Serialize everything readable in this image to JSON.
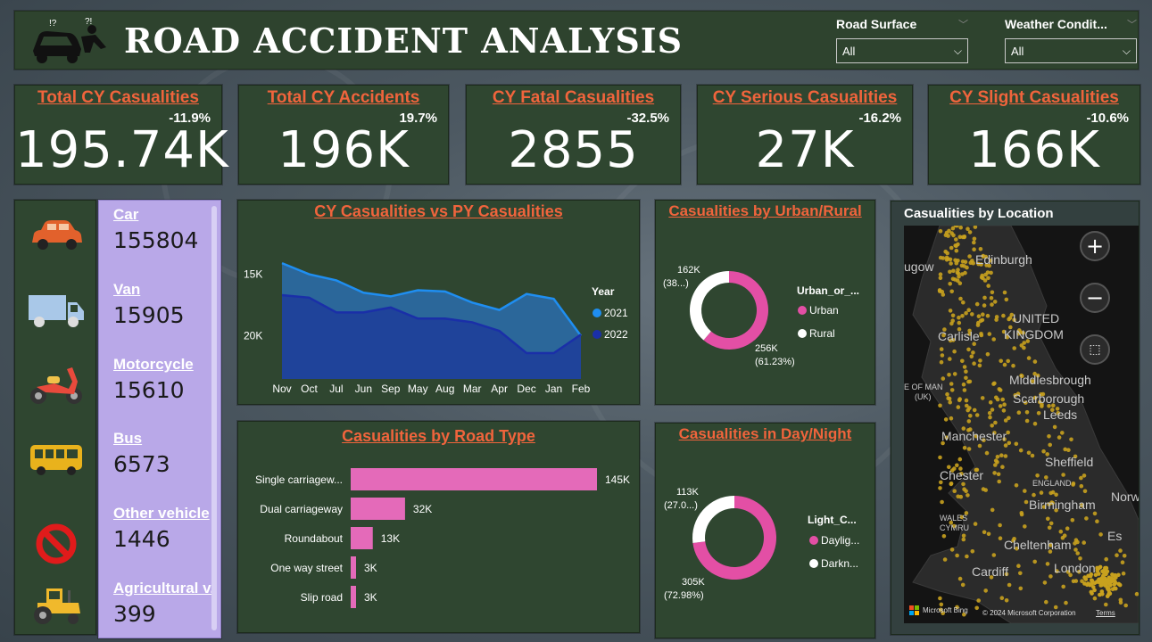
{
  "header": {
    "title": "ROAD ACCIDENT ANALYSIS",
    "slicers": [
      {
        "label": "Road Surface",
        "value": "All"
      },
      {
        "label": "Weather Condit...",
        "value": "All"
      }
    ]
  },
  "kpis": [
    {
      "title": "Total CY Casualities",
      "delta": "-11.9%",
      "value": "195.74K"
    },
    {
      "title": "Total CY Accidents",
      "delta": "19.7%",
      "value": "196K"
    },
    {
      "title": "CY Fatal Casualities",
      "delta": "-32.5%",
      "value": "2855"
    },
    {
      "title": "CY Serious Casualities",
      "delta": "-16.2%",
      "value": "27K"
    },
    {
      "title": "CY Slight Casualities",
      "delta": "-10.6%",
      "value": "166K"
    }
  ],
  "vehicles": [
    {
      "name": "Car",
      "value": "155804",
      "icon": "car-icon",
      "color": "#e2612c"
    },
    {
      "name": "Van",
      "value": "15905",
      "icon": "van-icon",
      "color": "#a9c8e8"
    },
    {
      "name": "Motorcycle",
      "value": "15610",
      "icon": "motorcycle-icon",
      "color": "#e84a3c"
    },
    {
      "name": "Bus",
      "value": "6573",
      "icon": "bus-icon",
      "color": "#e9b21c"
    },
    {
      "name": "Other vehicle",
      "value": "1446",
      "icon": "prohibited-icon",
      "color": "#e01b1b"
    },
    {
      "name": "Agricultural v...",
      "value": "399",
      "icon": "tractor-icon",
      "color": "#f0b92c"
    }
  ],
  "charts": {
    "cy_py": {
      "title": "CY Casualities vs PY Casualities",
      "legend_title": "Year",
      "y_ticks": [
        "20K",
        "15K"
      ]
    },
    "road_type": {
      "title": "Casualities by Road Type"
    },
    "urban_rural": {
      "title": "Casualities by Urban/Rural",
      "legend_title": "Urban_or_...",
      "labels": [
        {
          "line1": "162K",
          "line2": "(38...)"
        },
        {
          "line1": "256K",
          "line2": "(61.23%)"
        }
      ]
    },
    "day_night": {
      "title": "Casualities in Day/Night",
      "legend_title": "Light_C...",
      "labels": [
        {
          "line1": "113K",
          "line2": "(27.0...)"
        },
        {
          "line1": "305K",
          "line2": "(72.98%)"
        }
      ]
    }
  },
  "map": {
    "title": "Casualities by Location",
    "zoom_in": "+",
    "zoom_out": "−",
    "attribution_left": "Microsoft Bing",
    "attribution_right": "© 2024 Microsoft Corporation",
    "terms": "Terms",
    "place_labels": [
      "ugow",
      "Edinburgh",
      "UNITED",
      "KINGDOM",
      "Carlisle",
      "E OF MAN",
      "(UK)",
      "Middlesbrough",
      "Scarborough",
      "Leeds",
      "Manchester",
      "Sheffield",
      "Chester",
      "ENGLAND",
      "Birmingham",
      "Norw",
      "WALES",
      "CYMRU",
      "Cheltenham",
      "Es",
      "London",
      "Cardiff"
    ]
  },
  "chart_data": [
    {
      "type": "area",
      "title": "CY Casualities vs PY Casualities",
      "categories": [
        "Nov",
        "Oct",
        "Jul",
        "Jun",
        "Sep",
        "May",
        "Aug",
        "Mar",
        "Apr",
        "Dec",
        "Jan",
        "Feb"
      ],
      "ylim": [
        11500,
        22500
      ],
      "y_ticks": [
        15000,
        20000
      ],
      "legend_title": "Year",
      "legend_placement": "right",
      "series": [
        {
          "name": "2021",
          "color": "#1f8ef1",
          "values": [
            20900,
            20000,
            19500,
            18500,
            18200,
            18700,
            18600,
            17700,
            17100,
            18400,
            18000,
            15000
          ]
        },
        {
          "name": "2022",
          "color": "#1a2fa8",
          "values": [
            18300,
            18100,
            16900,
            16900,
            17300,
            16400,
            16400,
            16100,
            15400,
            13600,
            13600,
            15100
          ]
        }
      ]
    },
    {
      "type": "bar",
      "orientation": "horizontal",
      "title": "Casualities by Road Type",
      "categories": [
        "Single carriagew...",
        "Dual carriageway",
        "Roundabout",
        "One way street",
        "Slip road"
      ],
      "values": [
        145,
        32,
        13,
        3,
        3
      ],
      "value_labels": [
        "145K",
        "32K",
        "13K",
        "3K",
        "3K"
      ],
      "unit": "K",
      "color": "#e46ab9"
    },
    {
      "type": "pie",
      "title": "Casualities by Urban/Rural",
      "legend_title": "Urban_or_...",
      "series": [
        {
          "name": "Urban",
          "value": 256,
          "label": "256K",
          "percent": "61.23%",
          "color": "#e34fa5"
        },
        {
          "name": "Rural",
          "value": 162,
          "label": "162K",
          "percent": "(38...)",
          "color": "#ffffff"
        }
      ]
    },
    {
      "type": "pie",
      "title": "Casualities in Day/Night",
      "legend_title": "Light_C...",
      "series": [
        {
          "name": "Daylig...",
          "value": 305,
          "label": "305K",
          "percent": "72.98%",
          "color": "#e34fa5"
        },
        {
          "name": "Darkn...",
          "value": 113,
          "label": "113K",
          "percent": "(27.0...)",
          "color": "#ffffff"
        }
      ]
    }
  ]
}
